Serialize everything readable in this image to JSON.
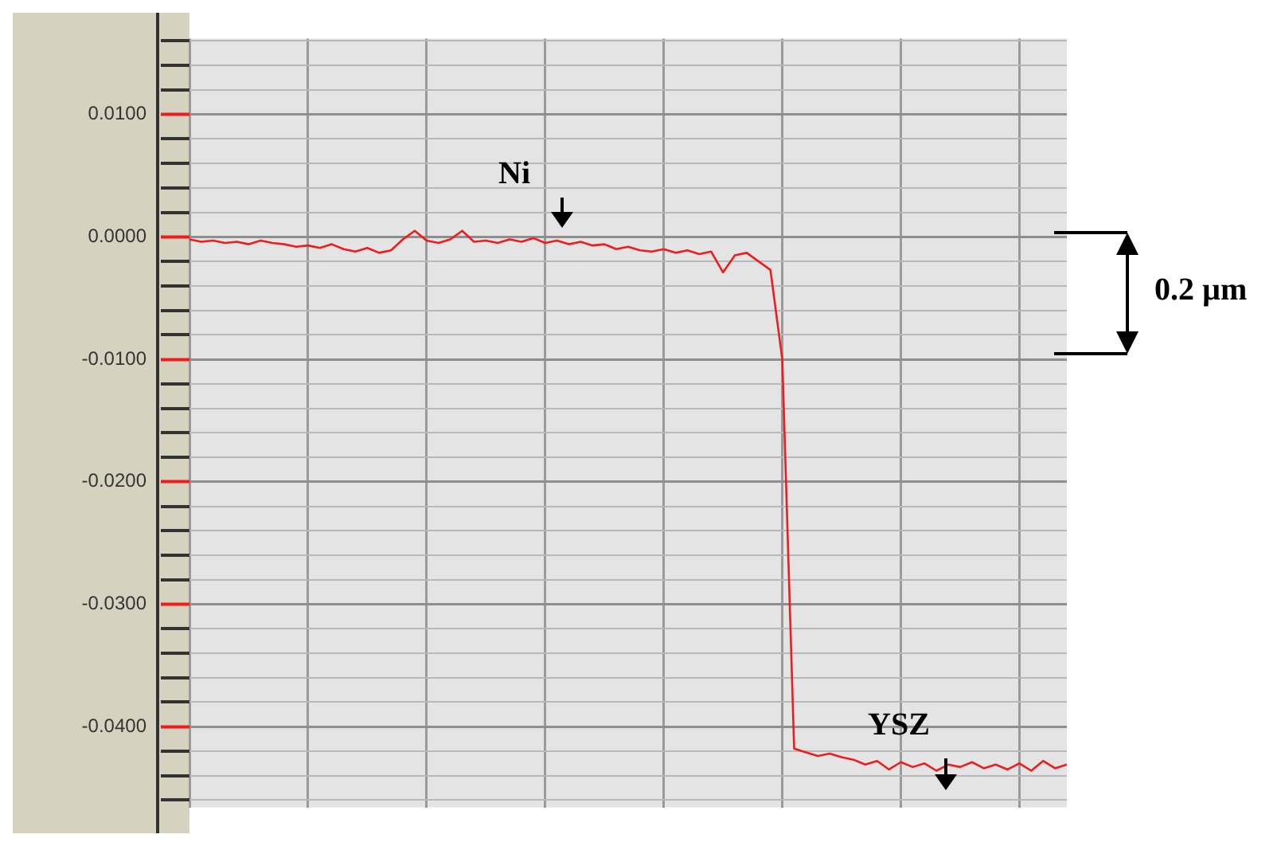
{
  "chart_data": {
    "type": "line",
    "categories": [
      null,
      null,
      null,
      null,
      null,
      null,
      null,
      null,
      null,
      null,
      null,
      null,
      null,
      null,
      null,
      null,
      null,
      null,
      null,
      null,
      null,
      null,
      null,
      null,
      null,
      null,
      null,
      null,
      null,
      null,
      null,
      null,
      null,
      null,
      null,
      null,
      null,
      null,
      null,
      null,
      null,
      null,
      null,
      null,
      null,
      null,
      null,
      null,
      null,
      null,
      null,
      null,
      null,
      null,
      null,
      null,
      null,
      null,
      null,
      null,
      null,
      null,
      null,
      null,
      null,
      null,
      null,
      null,
      null,
      null,
      null,
      null,
      null,
      null,
      null
    ],
    "series": [
      {
        "color": "#ee1c1c",
        "values": [
          -0.0002,
          -0.0004,
          -0.0003,
          -0.0005,
          -0.0004,
          -0.0006,
          -0.0003,
          -0.0005,
          -0.0006,
          -0.0008,
          -0.0007,
          -0.0009,
          -0.0006,
          -0.001,
          -0.0012,
          -0.0009,
          -0.0013,
          -0.0011,
          -0.0002,
          0.0005,
          -0.0003,
          -0.0005,
          -0.0002,
          0.0005,
          -0.0004,
          -0.0003,
          -0.0005,
          -0.0002,
          -0.0004,
          -0.0001,
          -0.0005,
          -0.0003,
          -0.0006,
          -0.0004,
          -0.0007,
          -0.0006,
          -0.001,
          -0.0008,
          -0.0011,
          -0.0012,
          -0.001,
          -0.0013,
          -0.0011,
          -0.0014,
          -0.0012,
          -0.0029,
          -0.0015,
          -0.0013,
          -0.002,
          -0.0027,
          -0.01,
          -0.0418,
          -0.0421,
          -0.0424,
          -0.0422,
          -0.0425,
          -0.0427,
          -0.0431,
          -0.0428,
          -0.0435,
          -0.0429,
          -0.0433,
          -0.043,
          -0.0436,
          -0.0431,
          -0.0433,
          -0.0429,
          -0.0434,
          -0.0431,
          -0.0435,
          -0.043,
          -0.0436,
          -0.0428,
          -0.0434,
          -0.0431
        ]
      }
    ],
    "ylim": [
      -0.0466,
      0.0162
    ],
    "yticks": [
      {
        "value": 0.016,
        "label": null
      },
      {
        "value": 0.014,
        "label": null
      },
      {
        "value": 0.012,
        "label": null
      },
      {
        "value": 0.01,
        "label": "0.0100"
      },
      {
        "value": 0.008,
        "label": null
      },
      {
        "value": 0.006,
        "label": null
      },
      {
        "value": 0.004,
        "label": null
      },
      {
        "value": 0.002,
        "label": null
      },
      {
        "value": 0,
        "label": "0.0000"
      },
      {
        "value": -0.002,
        "label": null
      },
      {
        "value": -0.004,
        "label": null
      },
      {
        "value": -0.006,
        "label": null
      },
      {
        "value": -0.008,
        "label": null
      },
      {
        "value": -0.01,
        "label": "-0.0100"
      },
      {
        "value": -0.012,
        "label": null
      },
      {
        "value": -0.014,
        "label": null
      },
      {
        "value": -0.016,
        "label": null
      },
      {
        "value": -0.018,
        "label": null
      },
      {
        "value": -0.02,
        "label": "-0.0200"
      },
      {
        "value": -0.022,
        "label": null
      },
      {
        "value": -0.024,
        "label": null
      },
      {
        "value": -0.026,
        "label": null
      },
      {
        "value": -0.028,
        "label": null
      },
      {
        "value": -0.03,
        "label": "-0.0300"
      },
      {
        "value": -0.032,
        "label": null
      },
      {
        "value": -0.034,
        "label": null
      },
      {
        "value": -0.036,
        "label": null
      },
      {
        "value": -0.038,
        "label": null
      },
      {
        "value": -0.04,
        "label": "-0.0400"
      },
      {
        "value": -0.042,
        "label": null
      },
      {
        "value": -0.044,
        "label": null
      },
      {
        "value": -0.046,
        "label": null
      }
    ],
    "grid": true,
    "tick_labels": "y",
    "marker": "none",
    "line_style": "solid",
    "legend": false,
    "annotations": [
      "Ni",
      "YSZ",
      "0.2 µm"
    ]
  }
}
